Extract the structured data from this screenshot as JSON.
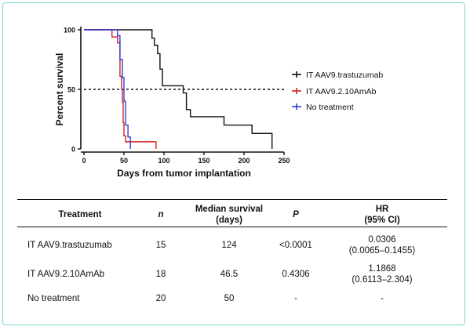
{
  "chart_data": {
    "type": "line",
    "step": true,
    "ylabel": "Percent survival",
    "xlabel": "Days from tumor implantation",
    "xlim": [
      0,
      250
    ],
    "ylim": [
      0,
      100
    ],
    "xticks": [
      0,
      50,
      100,
      150,
      200,
      250
    ],
    "yticks": [
      0,
      50,
      100
    ],
    "reference_line": {
      "y": 50,
      "style": "dashed"
    },
    "legend_position": "right",
    "series": [
      {
        "name": "IT AAV9.trastuzumab",
        "color": "#111111",
        "x": [
          0,
          80,
          85,
          88,
          92,
          95,
          98,
          124,
          128,
          133,
          175,
          210,
          235
        ],
        "y": [
          100,
          100,
          93,
          87,
          80,
          67,
          53,
          47,
          33,
          27,
          20,
          13,
          0
        ]
      },
      {
        "name": "IT AAV9.2.10AmAb",
        "color": "#d62020",
        "x": [
          0,
          30,
          35,
          42,
          45,
          47,
          48,
          49,
          50,
          52,
          90
        ],
        "y": [
          100,
          100,
          94,
          89,
          61,
          50,
          39,
          22,
          11,
          6,
          0
        ]
      },
      {
        "name": "No treatment",
        "color": "#2b3fd8",
        "x": [
          0,
          40,
          42,
          45,
          48,
          50,
          52,
          55,
          58
        ],
        "y": [
          100,
          100,
          95,
          75,
          60,
          40,
          20,
          10,
          0
        ]
      }
    ]
  },
  "table": {
    "headers": {
      "treatment": "Treatment",
      "n": "n",
      "median_line1": "Median survival",
      "median_line2": "(days)",
      "p": "P",
      "hr_line1": "HR",
      "hr_line2": "(95% CI)"
    },
    "rows": [
      {
        "treatment": "IT AAV9.trastuzumab",
        "n": "15",
        "median": "124",
        "p": "<0.0001",
        "hr": "0.0306",
        "ci": "(0.0065–0.1455)"
      },
      {
        "treatment": "IT AAV9.2.10AmAb",
        "n": "18",
        "median": "46.5",
        "p": "0.4306",
        "hr": "1.1868",
        "ci": "(0.6113–2.304)"
      },
      {
        "treatment": "No treatment",
        "n": "20",
        "median": "50",
        "p": "-",
        "hr": "-",
        "ci": ""
      }
    ]
  }
}
